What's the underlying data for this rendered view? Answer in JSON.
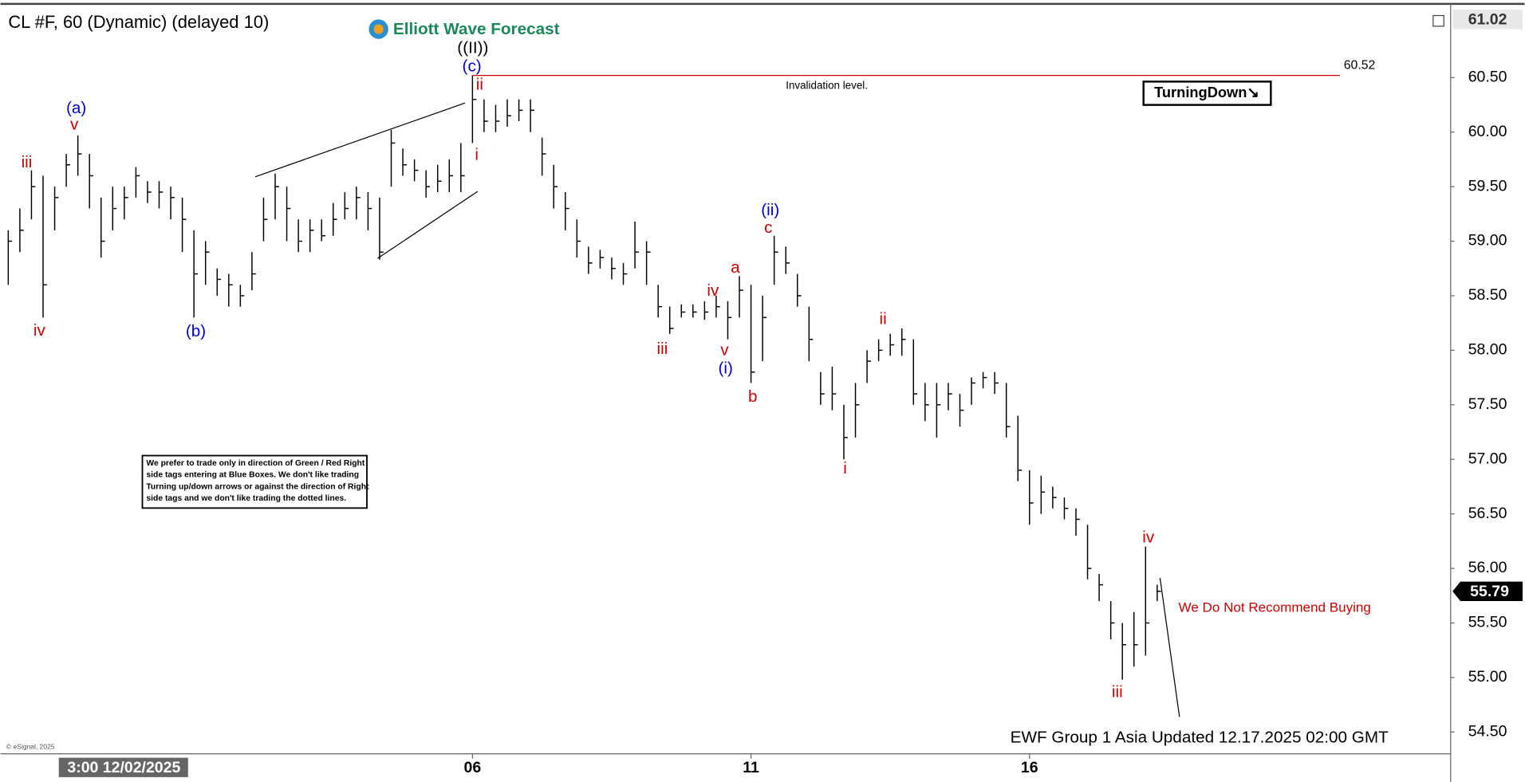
{
  "chart_data": {
    "type": "ohlc",
    "title": "CL #F, 60 (Dynamic) (delayed 10)",
    "brand": "Elliott Wave Forecast",
    "categories": [
      "3:00 12/02/2025",
      null,
      null,
      null,
      null,
      null,
      null,
      null,
      null,
      null,
      null,
      null,
      null,
      null,
      null,
      null,
      null,
      null,
      null,
      null,
      null,
      null,
      null,
      null,
      null,
      null,
      null,
      null,
      null,
      null,
      null,
      null,
      null,
      null,
      null,
      null,
      null,
      null,
      null,
      null,
      "06",
      null,
      null,
      null,
      null,
      null,
      null,
      null,
      null,
      null,
      null,
      null,
      null,
      null,
      null,
      null,
      null,
      null,
      null,
      null,
      null,
      null,
      null,
      null,
      "11",
      null,
      null,
      null,
      null,
      null,
      null,
      null,
      null,
      null,
      null,
      null,
      null,
      null,
      null,
      null,
      null,
      null,
      null,
      null,
      null,
      null,
      null,
      null,
      "16",
      null,
      null,
      null,
      null,
      null,
      null,
      null,
      null,
      null,
      null,
      null
    ],
    "high": [
      59.1,
      59.3,
      59.65,
      59.6,
      59.5,
      59.8,
      59.97,
      59.8,
      59.4,
      59.5,
      59.5,
      59.68,
      59.55,
      59.55,
      59.5,
      59.4,
      59.1,
      59.0,
      58.75,
      58.7,
      58.6,
      58.9,
      59.4,
      59.62,
      59.5,
      59.2,
      59.2,
      59.2,
      59.35,
      59.45,
      59.5,
      59.45,
      59.4,
      60.02,
      59.85,
      59.75,
      59.65,
      59.7,
      59.75,
      59.9,
      60.52,
      60.3,
      60.25,
      60.3,
      60.3,
      60.3,
      59.95,
      59.7,
      59.45,
      59.2,
      58.95,
      58.92,
      58.85,
      58.8,
      59.18,
      59.0,
      58.6,
      58.4,
      58.42,
      58.42,
      58.45,
      58.5,
      58.45,
      58.68,
      58.6,
      58.5,
      59.05,
      58.95,
      58.7,
      58.4,
      57.8,
      57.85,
      57.5,
      57.7,
      58.0,
      58.1,
      58.15,
      58.2,
      58.1,
      57.7,
      57.7,
      57.7,
      57.6,
      57.75,
      57.8,
      57.8,
      57.7,
      57.4,
      56.9,
      56.85,
      56.75,
      56.65,
      56.55,
      56.4,
      55.95,
      55.7,
      55.5,
      55.6,
      56.2,
      55.85
    ],
    "low": [
      58.6,
      58.9,
      59.2,
      58.3,
      59.1,
      59.5,
      59.6,
      59.3,
      58.85,
      59.1,
      59.2,
      59.4,
      59.35,
      59.3,
      59.2,
      58.9,
      58.3,
      58.6,
      58.5,
      58.4,
      58.4,
      58.55,
      59.0,
      59.2,
      59.0,
      58.9,
      58.9,
      59.0,
      59.05,
      59.2,
      59.2,
      59.1,
      58.83,
      59.5,
      59.6,
      59.55,
      59.4,
      59.45,
      59.45,
      59.45,
      59.9,
      60.0,
      60.0,
      60.05,
      60.1,
      60.0,
      59.6,
      59.3,
      59.1,
      58.85,
      58.7,
      58.75,
      58.65,
      58.6,
      58.75,
      58.6,
      58.3,
      58.15,
      58.3,
      58.3,
      58.28,
      58.3,
      58.1,
      58.3,
      57.7,
      57.9,
      58.6,
      58.7,
      58.4,
      57.9,
      57.5,
      57.45,
      57.0,
      57.2,
      57.7,
      57.9,
      57.95,
      57.95,
      57.5,
      57.35,
      57.2,
      57.45,
      57.3,
      57.5,
      57.65,
      57.6,
      57.2,
      56.8,
      56.4,
      56.5,
      56.55,
      56.45,
      56.3,
      55.9,
      55.7,
      55.35,
      54.98,
      55.1,
      55.2,
      55.7
    ],
    "close": [
      59.0,
      59.1,
      59.5,
      58.6,
      59.4,
      59.7,
      59.8,
      59.6,
      59.0,
      59.3,
      59.4,
      59.6,
      59.45,
      59.45,
      59.4,
      59.2,
      58.7,
      58.9,
      58.65,
      58.6,
      58.5,
      58.7,
      59.2,
      59.5,
      59.3,
      59.0,
      59.1,
      59.05,
      59.2,
      59.3,
      59.4,
      59.3,
      58.9,
      59.9,
      59.7,
      59.65,
      59.5,
      59.55,
      59.6,
      59.6,
      60.3,
      60.1,
      60.1,
      60.15,
      60.2,
      60.2,
      59.8,
      59.5,
      59.3,
      59.0,
      58.8,
      58.85,
      58.75,
      58.7,
      58.9,
      58.9,
      58.4,
      58.2,
      58.35,
      58.35,
      58.35,
      58.4,
      58.3,
      58.55,
      57.8,
      58.3,
      58.9,
      58.8,
      58.5,
      58.1,
      57.6,
      57.6,
      57.2,
      57.5,
      57.9,
      58.0,
      58.05,
      58.1,
      57.6,
      57.5,
      57.5,
      57.6,
      57.45,
      57.7,
      57.75,
      57.7,
      57.3,
      56.9,
      56.6,
      56.7,
      56.65,
      56.55,
      56.45,
      56.0,
      55.85,
      55.5,
      55.3,
      55.3,
      55.5,
      55.79
    ],
    "color": "#000000",
    "ylim": [
      54.3,
      61.14
    ],
    "yticks": [
      {
        "value": 54.5,
        "label": "54.50"
      },
      {
        "value": 55,
        "label": "55.00"
      },
      {
        "value": 55.5,
        "label": "55.50"
      },
      {
        "value": 56,
        "label": "56.00"
      },
      {
        "value": 56.5,
        "label": "56.50"
      },
      {
        "value": 57,
        "label": "57.00"
      },
      {
        "value": 57.5,
        "label": "57.50"
      },
      {
        "value": 58,
        "label": "58.00"
      },
      {
        "value": 58.5,
        "label": "58.50"
      },
      {
        "value": 59,
        "label": "59.00"
      },
      {
        "value": 59.5,
        "label": "59.50"
      },
      {
        "value": 60,
        "label": "60.00"
      },
      {
        "value": 60.5,
        "label": "60.50"
      }
    ],
    "top_price": 61.02,
    "last_price": 55.79,
    "invalidation": {
      "value": 60.52,
      "text": "Invalidation level.",
      "color": "#d00000"
    },
    "annotations": [
      {
        "text": "((II))",
        "color": "#000000"
      },
      {
        "text": "(c)",
        "color": "#0000cc"
      },
      {
        "text": "ii",
        "color": "#d00000"
      },
      {
        "text": "i",
        "color": "#d00000"
      },
      {
        "text": "(a)",
        "color": "#0000cc"
      },
      {
        "text": "v",
        "color": "#d00000"
      },
      {
        "text": "iii",
        "color": "#d00000"
      },
      {
        "text": "iv",
        "color": "#d00000"
      },
      {
        "text": "(b)",
        "color": "#0000cc"
      },
      {
        "text": "iii",
        "color": "#d00000"
      },
      {
        "text": "iv",
        "color": "#d00000"
      },
      {
        "text": "v",
        "color": "#d00000"
      },
      {
        "text": "(i)",
        "color": "#0000cc"
      },
      {
        "text": "a",
        "color": "#d00000"
      },
      {
        "text": "b",
        "color": "#d00000"
      },
      {
        "text": "(ii)",
        "color": "#0000cc"
      },
      {
        "text": "c",
        "color": "#d00000"
      },
      {
        "text": "ii",
        "color": "#d00000"
      },
      {
        "text": "i",
        "color": "#d00000"
      },
      {
        "text": "iii",
        "color": "#d00000"
      },
      {
        "text": "iv",
        "color": "#d00000"
      }
    ],
    "tag": "TurningDown↘",
    "disclaimer": [
      "We prefer to trade only in direction of Green / Red Right",
      "side tags entering at Blue Boxes. We don't like trading",
      "Turning up/down arrows or against the direction of Right",
      "side tags and we don't like trading the dotted lines."
    ],
    "advice": "We Do Not Recommend Buying",
    "footer": "EWF Group 1 Asia Updated 12.17.2025 02:00 GMT",
    "copyright": "© eSignal, 2025"
  }
}
